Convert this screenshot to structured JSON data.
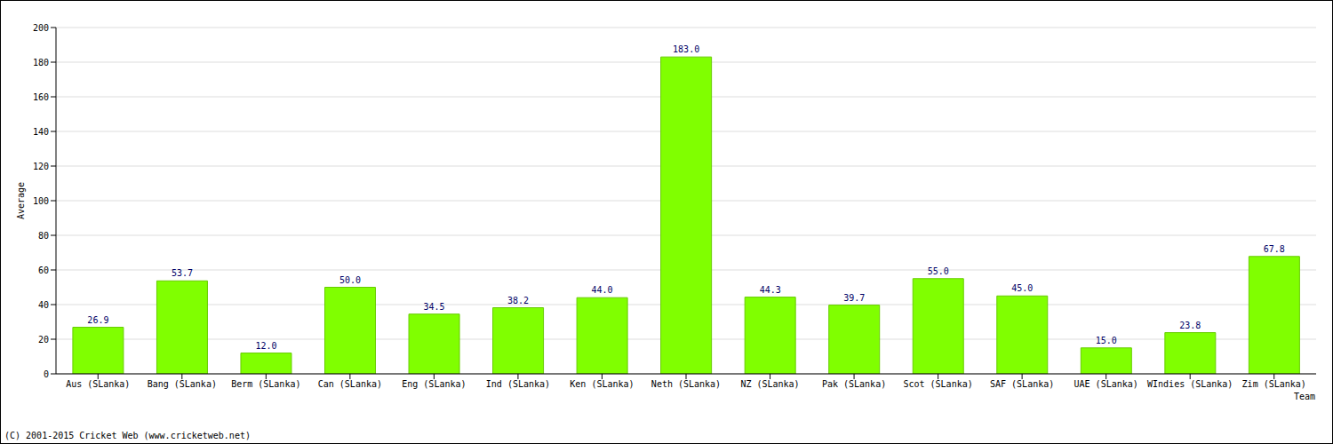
{
  "chart_data": {
    "type": "bar",
    "categories": [
      "Aus (SLanka)",
      "Bang (SLanka)",
      "Berm (SLanka)",
      "Can (SLanka)",
      "Eng (SLanka)",
      "Ind (SLanka)",
      "Ken (SLanka)",
      "Neth (SLanka)",
      "NZ (SLanka)",
      "Pak (SLanka)",
      "Scot (SLanka)",
      "SAF (SLanka)",
      "UAE (SLanka)",
      "WIndies (SLanka)",
      "Zim (SLanka)"
    ],
    "values": [
      26.9,
      53.7,
      12.0,
      50.0,
      34.5,
      38.2,
      44.0,
      183.0,
      44.3,
      39.7,
      55.0,
      45.0,
      15.0,
      23.8,
      67.8
    ],
    "value_labels": [
      "26.9",
      "53.7",
      "12.0",
      "50.0",
      "34.5",
      "38.2",
      "44.0",
      "183.0",
      "44.3",
      "39.7",
      "55.0",
      "45.0",
      "15.0",
      "23.8",
      "67.8"
    ],
    "color": "#80ff00",
    "ylim": [
      0,
      200
    ],
    "yticks": [
      0,
      20,
      40,
      60,
      80,
      100,
      120,
      140,
      160,
      180,
      200
    ],
    "grid": true,
    "data_labels": true,
    "y_label": "Average",
    "x_label": "Team",
    "footer": "(C) 2001-2015 Cricket Web (www.cricketweb.net)"
  }
}
